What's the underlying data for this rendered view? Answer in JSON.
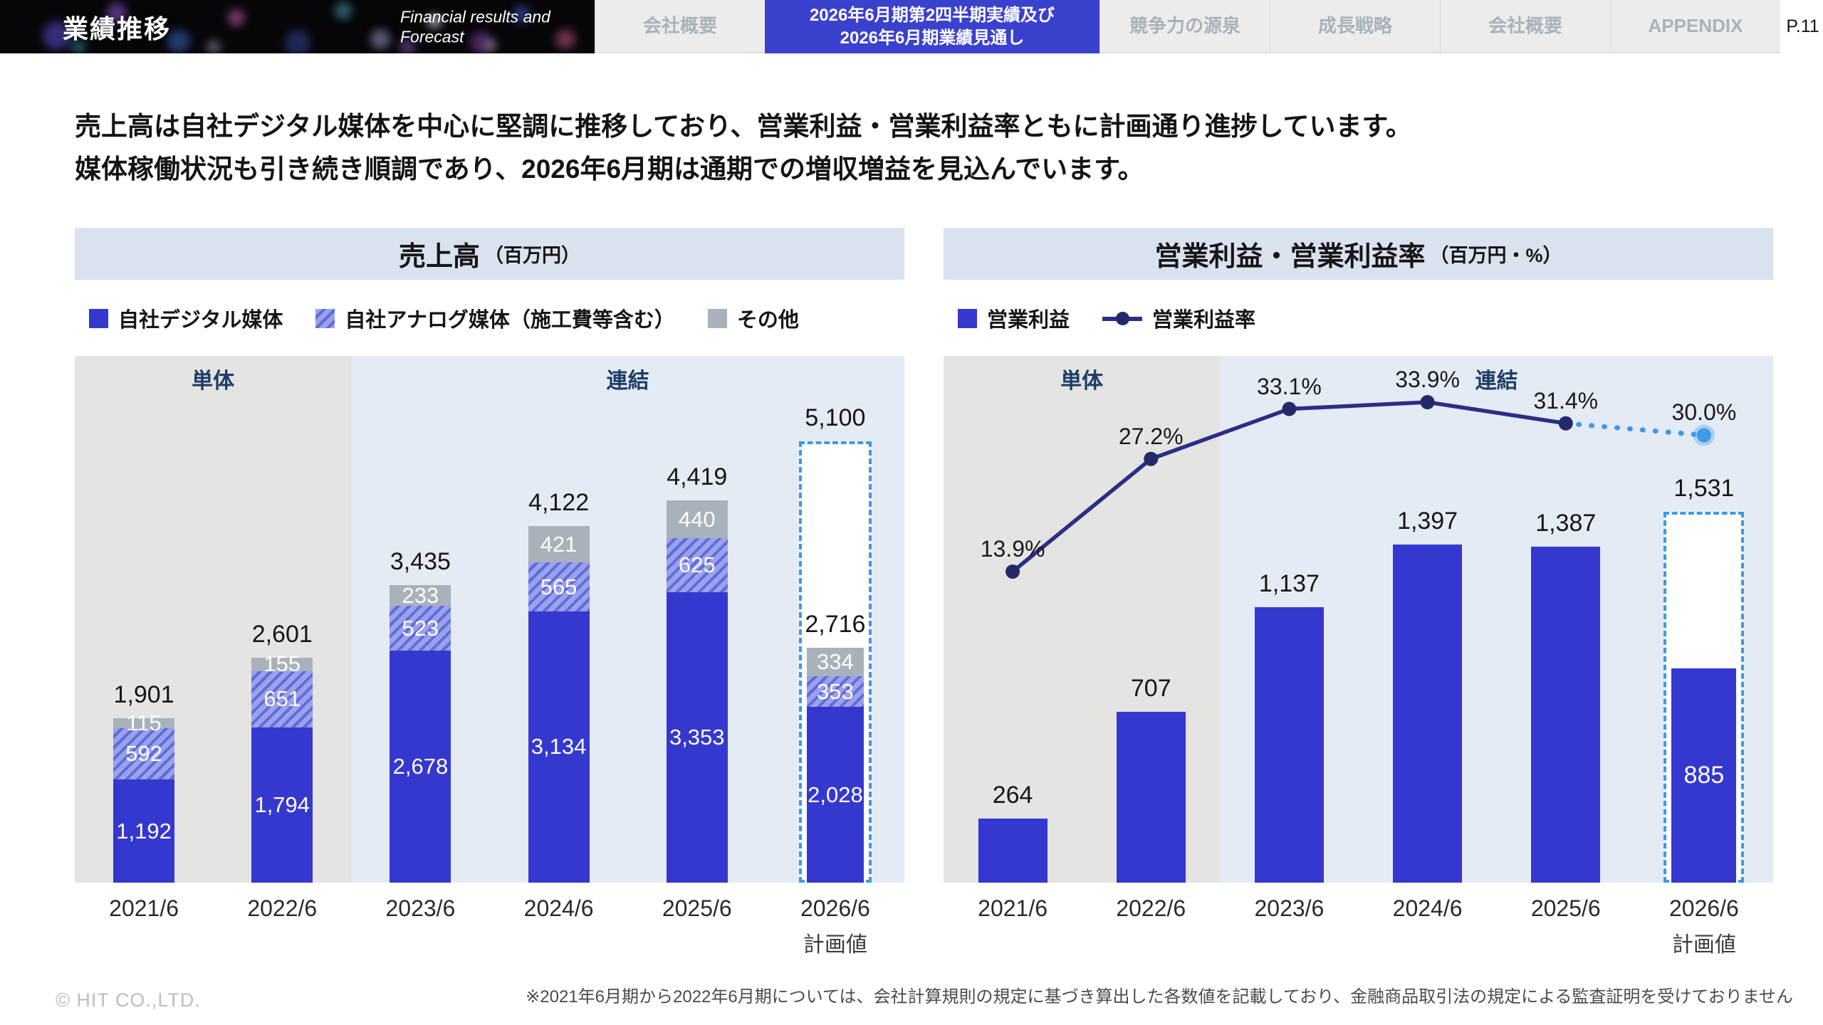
{
  "header": {
    "title": "業績推移",
    "subtitle": "Financial results and\nForecast",
    "tabs": [
      {
        "label": "会社概要",
        "active": false
      },
      {
        "label": "2026年6月期第2四半期実績及び\n2026年6月期業績見通し",
        "active": true
      },
      {
        "label": "競争力の源泉",
        "active": false
      },
      {
        "label": "成長戦略",
        "active": false
      },
      {
        "label": "会社概要",
        "active": false
      },
      {
        "label": "APPENDIX",
        "active": false
      }
    ],
    "page_number": "P.11"
  },
  "headline": {
    "line1": "売上高は自社デジタル媒体を中心に堅調に推移しており、営業利益・営業利益率ともに計画通り進捗しています。",
    "line2": "媒体稼働状況も引き続き順調であり、2026年6月期は通期での増収増益を見込んでいます。"
  },
  "colors": {
    "bar_blue": "#3538cf",
    "hatch_light": "#9aa2e9",
    "hatch_dark": "#616ade",
    "segment_gray": "#a9b2bb",
    "line_navy": "#2a2e86",
    "marker_navy": "#232a68",
    "plan_dashed_blue": "#4098e6",
    "zone_gray_bg": "#e4e4e2",
    "zone_blue_bg": "#e4ebf4",
    "band_bg": "#d9e2ed",
    "active_tab_bg": "#3a41cc"
  },
  "chart_data": [
    {
      "type": "bar",
      "stacked": true,
      "title": "売上高",
      "unit": "（百万円）",
      "categories": [
        "2021/6",
        "2022/6",
        "2023/6",
        "2024/6",
        "2025/6",
        "2026/6"
      ],
      "category_note": {
        "index": 5,
        "label": "計画値"
      },
      "series": [
        {
          "name": "自社デジタル媒体",
          "style": "solid",
          "values": [
            1192,
            1794,
            2678,
            3134,
            3353,
            2028
          ]
        },
        {
          "name": "自社アナログ媒体（施工費等含む）",
          "style": "hatch",
          "values": [
            592,
            651,
            523,
            565,
            625,
            353
          ]
        },
        {
          "name": "その他",
          "style": "other",
          "values": [
            115,
            155,
            233,
            421,
            440,
            334
          ]
        }
      ],
      "totals": [
        1901,
        2601,
        3435,
        4122,
        4419,
        null
      ],
      "plan": {
        "index": 5,
        "total": 5100,
        "interim_total": 2716
      },
      "zones": [
        {
          "label": "単体",
          "span": [
            0,
            1
          ],
          "bg": "#e4e4e2"
        },
        {
          "label": "連結",
          "span": [
            2,
            5
          ],
          "bg": "#e4ebf4"
        }
      ]
    },
    {
      "type": "bar+line",
      "title": "営業利益・営業利益率",
      "unit": "（百万円・%）",
      "categories": [
        "2021/6",
        "2022/6",
        "2023/6",
        "2024/6",
        "2025/6",
        "2026/6"
      ],
      "category_note": {
        "index": 5,
        "label": "計画値"
      },
      "bar_series": {
        "name": "営業利益",
        "values": [
          264,
          707,
          1137,
          1397,
          1387,
          885
        ]
      },
      "plan": {
        "index": 5,
        "total": 1531
      },
      "line_series": {
        "name": "営業利益率",
        "values": [
          13.9,
          27.2,
          33.1,
          33.9,
          31.4,
          30.0
        ],
        "labels": [
          "13.9%",
          "27.2%",
          "33.1%",
          "33.9%",
          "31.4%",
          "30.0%"
        ],
        "forecast_from_index": 4
      },
      "zones": [
        {
          "label": "単体",
          "span": [
            0,
            1
          ],
          "bg": "#e4e4e2"
        },
        {
          "label": "連結",
          "span": [
            2,
            5
          ],
          "bg": "#e4ebf4"
        }
      ]
    }
  ],
  "footer": {
    "note": "※2021年6月期から2022年6月期については、会社計算規則の規定に基づき算出した各数値を記載しており、金融商品取引法の規定による監査証明を受けておりません",
    "copyright": "© HIT CO.,LTD."
  }
}
